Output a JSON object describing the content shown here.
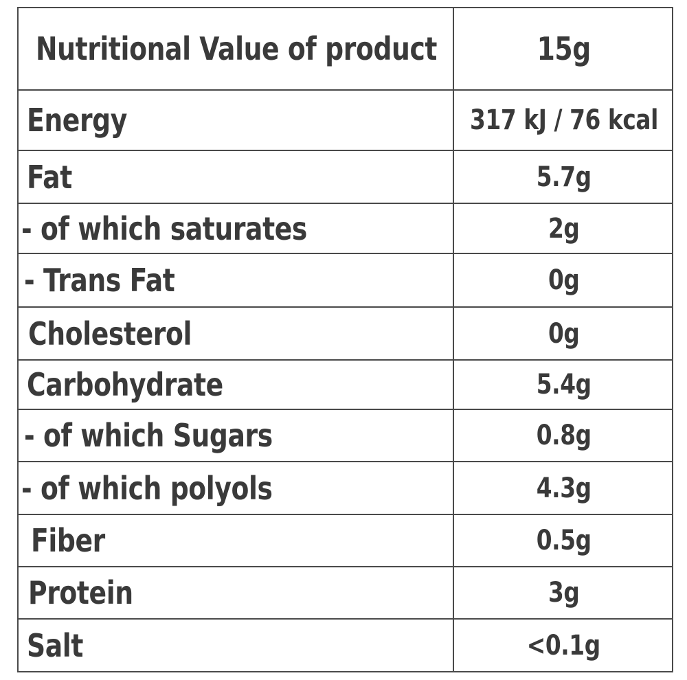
{
  "table": {
    "header": {
      "label": "Nutritional Value of product",
      "value": "15g"
    },
    "rows": [
      {
        "label": "Energy",
        "value": "317 kJ / 76 kcal"
      },
      {
        "label": "Fat",
        "value": "5.7g"
      },
      {
        "label": "- of which saturates",
        "value": "2g"
      },
      {
        "label": "- Trans Fat",
        "value": "0g"
      },
      {
        "label": "Cholesterol",
        "value": "0g"
      },
      {
        "label": "Carbohydrate",
        "value": "5.4g"
      },
      {
        "label": "- of which Sugars",
        "value": "0.8g"
      },
      {
        "label": "- of which polyols",
        "value": "4.3g"
      },
      {
        "label": "Fiber",
        "value": "0.5g"
      },
      {
        "label": "Protein",
        "value": "3g"
      },
      {
        "label": "Salt",
        "value": "<0.1g"
      }
    ]
  }
}
